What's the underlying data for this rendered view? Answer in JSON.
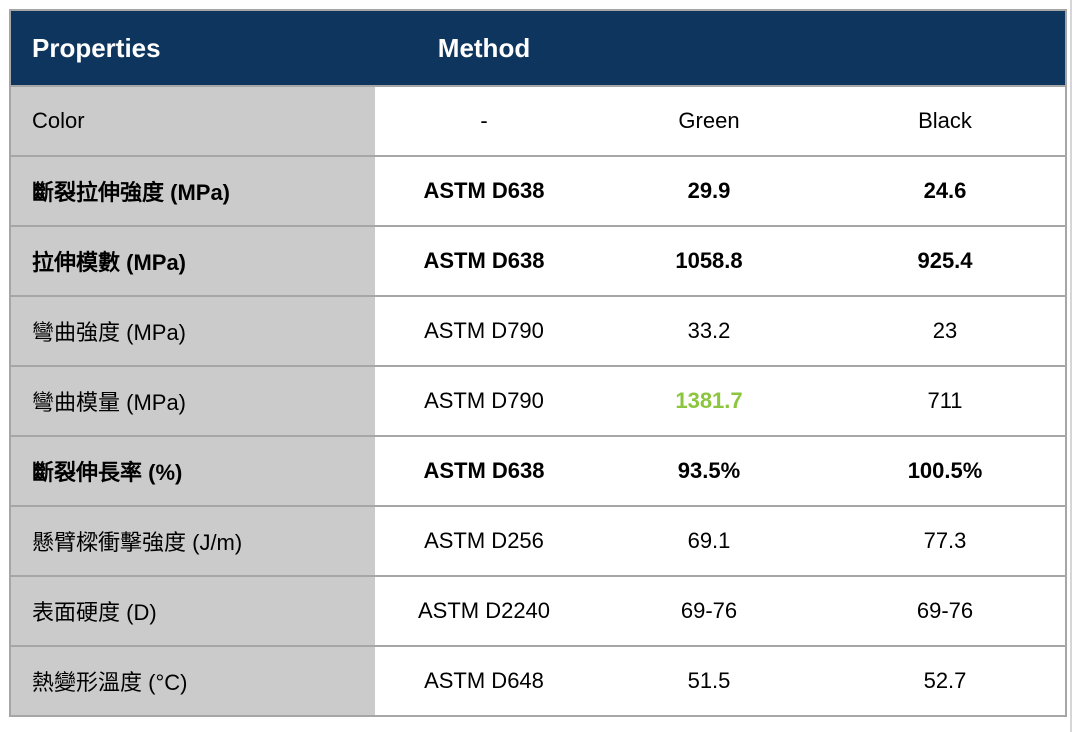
{
  "colors": {
    "header-bg": "#0e355e",
    "header-text": "#ffffff",
    "row-gray": "#cbcbcb",
    "border": "#a6a6a6",
    "accent-green": "#8cc63f",
    "text": "#000000",
    "page-bg": "#ffffff"
  },
  "table": {
    "header": {
      "properties_label": "Properties",
      "method_label": "Method"
    },
    "rows": [
      {
        "property": "Color",
        "method": "-",
        "green": "Green",
        "black": "Black",
        "bold": false,
        "green_highlighted": false
      },
      {
        "property": "斷裂拉伸強度 (MPa)",
        "method": "ASTM D638",
        "green": "29.9",
        "black": "24.6",
        "bold": true,
        "green_highlighted": false
      },
      {
        "property": "拉伸模數 (MPa)",
        "method": "ASTM D638",
        "green": "1058.8",
        "black": "925.4",
        "bold": true,
        "green_highlighted": false
      },
      {
        "property": "彎曲強度 (MPa)",
        "method": "ASTM D790",
        "green": "33.2",
        "black": "23",
        "bold": false,
        "green_highlighted": false
      },
      {
        "property": "彎曲模量 (MPa)",
        "method": "ASTM D790",
        "green": "1381.7",
        "black": "711",
        "bold": false,
        "green_highlighted": true
      },
      {
        "property": "斷裂伸長率 (%)",
        "method": "ASTM D638",
        "green": "93.5%",
        "black": "100.5%",
        "bold": true,
        "green_highlighted": false
      },
      {
        "property": "懸臂樑衝擊強度 (J/m)",
        "method": "ASTM D256",
        "green": "69.1",
        "black": "77.3",
        "bold": false,
        "green_highlighted": false
      },
      {
        "property": "表面硬度 (D)",
        "method": "ASTM D2240",
        "green": "69-76",
        "black": "69-76",
        "bold": false,
        "green_highlighted": false
      },
      {
        "property": "熱變形溫度 (°C)",
        "method": "ASTM D648",
        "green": "51.5",
        "black": "52.7",
        "bold": false,
        "green_highlighted": false
      }
    ]
  }
}
